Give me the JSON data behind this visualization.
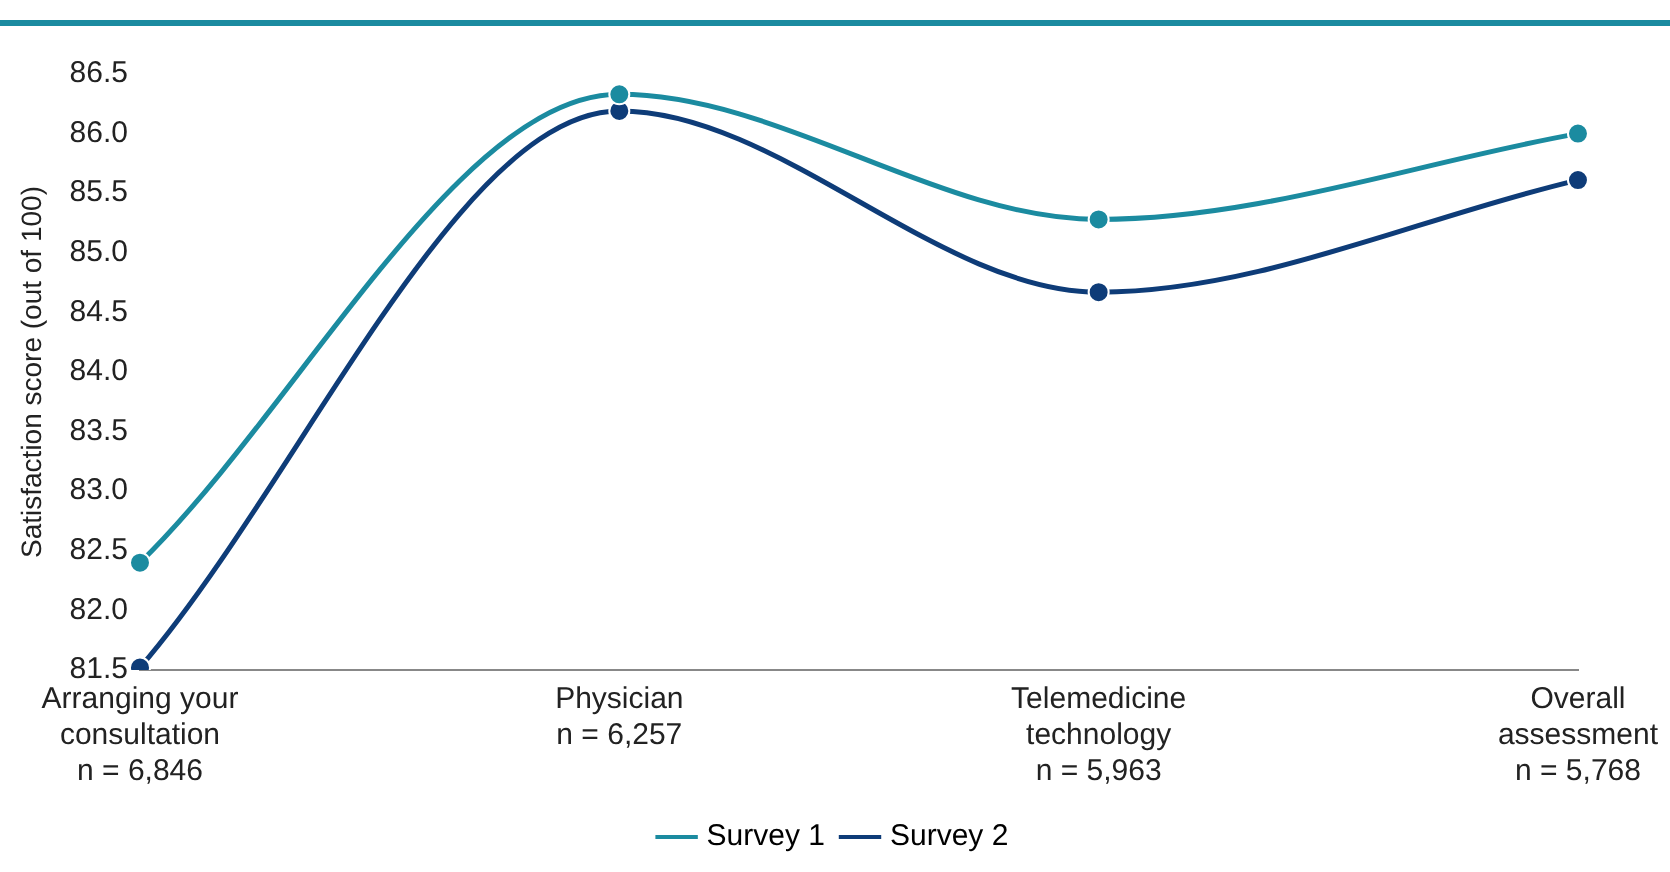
{
  "chart_data": {
    "type": "line",
    "ylabel": "Satisfaction score (out of 100)",
    "categories": [
      "Arranging your\nconsultation\nn = 6,846",
      "Physician\nn = 6,257",
      "Telemedicine\ntechnology\nn = 5,963",
      "Overall\nassessment\nn = 5,768"
    ],
    "series": [
      {
        "name": "Survey 1",
        "color": "#1b8ba0",
        "values": [
          82.4,
          86.33,
          85.28,
          86.0
        ]
      },
      {
        "name": "Survey 2",
        "color": "#0e3c78",
        "values": [
          81.52,
          86.19,
          84.67,
          85.61
        ]
      }
    ],
    "ylim": [
      81.5,
      86.5
    ],
    "yticks": [
      {
        "value": 81.5,
        "label": "81.5"
      },
      {
        "value": 82,
        "label": "82.0"
      },
      {
        "value": 82.5,
        "label": "82.5"
      },
      {
        "value": 83,
        "label": "83.0"
      },
      {
        "value": 83.5,
        "label": "83.5"
      },
      {
        "value": 84,
        "label": "84.0"
      },
      {
        "value": 84.5,
        "label": "84.5"
      },
      {
        "value": 85,
        "label": "85.0"
      },
      {
        "value": 85.5,
        "label": "85.5"
      },
      {
        "value": 86,
        "label": "86.0"
      },
      {
        "value": 86.5,
        "label": "86.5"
      }
    ],
    "grid": false,
    "legend": "bottom",
    "marker": "circle",
    "line_style": "solid"
  }
}
